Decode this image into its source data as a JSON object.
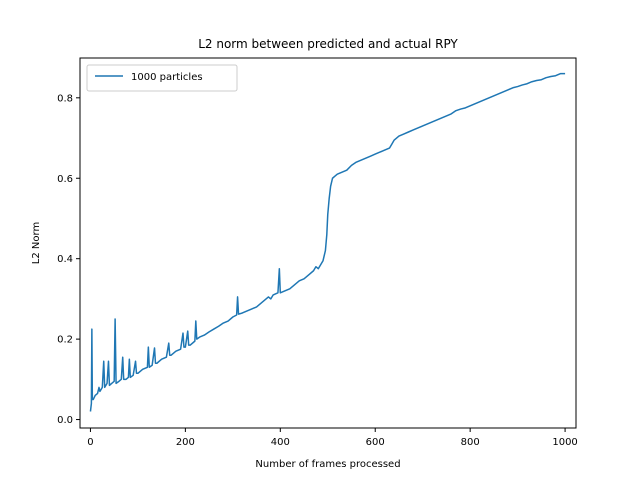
{
  "chart_data": {
    "type": "line",
    "title": "L2 norm between predicted and actual RPY",
    "xlabel": "Number of frames processed",
    "ylabel": "L2 Norm",
    "xlim": [
      -22,
      1023
    ],
    "ylim": [
      -0.021,
      0.899
    ],
    "xticks": [
      0,
      200,
      400,
      600,
      800,
      1000
    ],
    "yticks": [
      0.0,
      0.2,
      0.4,
      0.6,
      0.8
    ],
    "xtick_labels": [
      "0",
      "200",
      "400",
      "600",
      "800",
      "1000"
    ],
    "ytick_labels": [
      "0.0",
      "0.2",
      "0.4",
      "0.6",
      "0.8"
    ],
    "grid": false,
    "legend": {
      "position": "upper-left",
      "entries": [
        "1000 particles"
      ]
    },
    "series": [
      {
        "name": "1000 particles",
        "color": "#1f77b4",
        "points": [
          [
            0,
            0.02
          ],
          [
            2,
            0.04
          ],
          [
            3,
            0.225
          ],
          [
            4,
            0.05
          ],
          [
            6,
            0.05
          ],
          [
            10,
            0.06
          ],
          [
            15,
            0.065
          ],
          [
            18,
            0.08
          ],
          [
            20,
            0.07
          ],
          [
            25,
            0.08
          ],
          [
            28,
            0.145
          ],
          [
            30,
            0.08
          ],
          [
            35,
            0.09
          ],
          [
            38,
            0.145
          ],
          [
            40,
            0.085
          ],
          [
            45,
            0.09
          ],
          [
            50,
            0.095
          ],
          [
            52,
            0.25
          ],
          [
            54,
            0.09
          ],
          [
            60,
            0.095
          ],
          [
            65,
            0.1
          ],
          [
            68,
            0.155
          ],
          [
            70,
            0.1
          ],
          [
            75,
            0.1
          ],
          [
            80,
            0.105
          ],
          [
            82,
            0.15
          ],
          [
            84,
            0.105
          ],
          [
            90,
            0.11
          ],
          [
            95,
            0.145
          ],
          [
            97,
            0.115
          ],
          [
            100,
            0.115
          ],
          [
            110,
            0.125
          ],
          [
            120,
            0.13
          ],
          [
            122,
            0.18
          ],
          [
            124,
            0.13
          ],
          [
            130,
            0.135
          ],
          [
            135,
            0.178
          ],
          [
            137,
            0.14
          ],
          [
            140,
            0.14
          ],
          [
            150,
            0.15
          ],
          [
            160,
            0.155
          ],
          [
            165,
            0.19
          ],
          [
            167,
            0.16
          ],
          [
            170,
            0.16
          ],
          [
            180,
            0.17
          ],
          [
            190,
            0.175
          ],
          [
            195,
            0.215
          ],
          [
            197,
            0.18
          ],
          [
            200,
            0.18
          ],
          [
            205,
            0.22
          ],
          [
            207,
            0.185
          ],
          [
            210,
            0.185
          ],
          [
            220,
            0.195
          ],
          [
            222,
            0.245
          ],
          [
            224,
            0.2
          ],
          [
            230,
            0.205
          ],
          [
            240,
            0.21
          ],
          [
            250,
            0.218
          ],
          [
            260,
            0.225
          ],
          [
            270,
            0.232
          ],
          [
            280,
            0.24
          ],
          [
            290,
            0.245
          ],
          [
            300,
            0.255
          ],
          [
            308,
            0.26
          ],
          [
            310,
            0.305
          ],
          [
            312,
            0.262
          ],
          [
            320,
            0.265
          ],
          [
            330,
            0.27
          ],
          [
            340,
            0.275
          ],
          [
            350,
            0.28
          ],
          [
            360,
            0.29
          ],
          [
            370,
            0.3
          ],
          [
            375,
            0.305
          ],
          [
            380,
            0.3
          ],
          [
            385,
            0.31
          ],
          [
            395,
            0.315
          ],
          [
            398,
            0.375
          ],
          [
            400,
            0.315
          ],
          [
            410,
            0.32
          ],
          [
            420,
            0.325
          ],
          [
            430,
            0.335
          ],
          [
            440,
            0.345
          ],
          [
            450,
            0.35
          ],
          [
            460,
            0.36
          ],
          [
            470,
            0.37
          ],
          [
            475,
            0.38
          ],
          [
            480,
            0.375
          ],
          [
            485,
            0.385
          ],
          [
            490,
            0.395
          ],
          [
            495,
            0.42
          ],
          [
            498,
            0.46
          ],
          [
            500,
            0.51
          ],
          [
            503,
            0.55
          ],
          [
            506,
            0.58
          ],
          [
            510,
            0.6
          ],
          [
            515,
            0.605
          ],
          [
            520,
            0.61
          ],
          [
            530,
            0.615
          ],
          [
            540,
            0.62
          ],
          [
            550,
            0.632
          ],
          [
            560,
            0.64
          ],
          [
            570,
            0.645
          ],
          [
            580,
            0.65
          ],
          [
            590,
            0.655
          ],
          [
            600,
            0.66
          ],
          [
            610,
            0.665
          ],
          [
            620,
            0.67
          ],
          [
            630,
            0.675
          ],
          [
            635,
            0.685
          ],
          [
            640,
            0.695
          ],
          [
            645,
            0.7
          ],
          [
            650,
            0.705
          ],
          [
            660,
            0.71
          ],
          [
            670,
            0.715
          ],
          [
            680,
            0.72
          ],
          [
            690,
            0.725
          ],
          [
            700,
            0.73
          ],
          [
            710,
            0.735
          ],
          [
            720,
            0.74
          ],
          [
            730,
            0.745
          ],
          [
            740,
            0.75
          ],
          [
            750,
            0.755
          ],
          [
            760,
            0.76
          ],
          [
            770,
            0.768
          ],
          [
            780,
            0.772
          ],
          [
            790,
            0.775
          ],
          [
            800,
            0.78
          ],
          [
            810,
            0.785
          ],
          [
            820,
            0.79
          ],
          [
            830,
            0.795
          ],
          [
            840,
            0.8
          ],
          [
            850,
            0.805
          ],
          [
            860,
            0.81
          ],
          [
            870,
            0.815
          ],
          [
            880,
            0.82
          ],
          [
            890,
            0.825
          ],
          [
            900,
            0.828
          ],
          [
            910,
            0.832
          ],
          [
            920,
            0.835
          ],
          [
            930,
            0.84
          ],
          [
            940,
            0.843
          ],
          [
            950,
            0.845
          ],
          [
            960,
            0.85
          ],
          [
            970,
            0.853
          ],
          [
            980,
            0.855
          ],
          [
            990,
            0.86
          ],
          [
            1000,
            0.86
          ]
        ]
      }
    ]
  }
}
